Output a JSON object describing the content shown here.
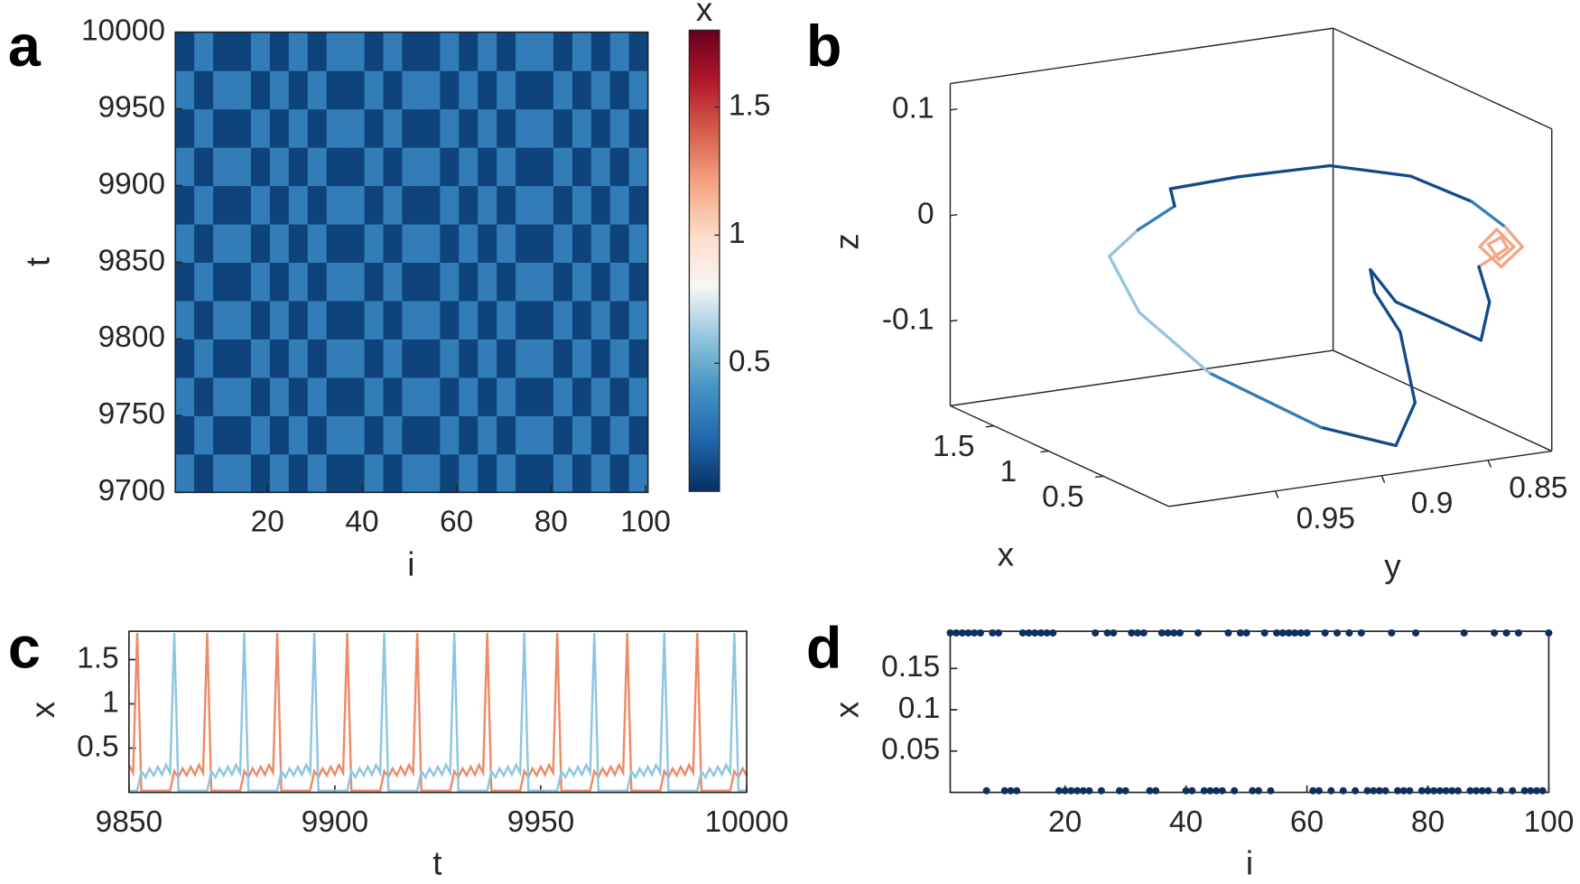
{
  "chart_data": [
    {
      "type": "heatmap",
      "label": "a",
      "xlabel": "i",
      "ylabel": "t",
      "xlim": [
        0.5,
        100.5
      ],
      "ylim": [
        9700,
        10000
      ],
      "xticks": [
        20,
        40,
        60,
        80,
        100
      ],
      "yticks": [
        9700,
        9750,
        9800,
        9850,
        9900,
        9950,
        10000
      ],
      "colorbar_label": "x",
      "clim": [
        0,
        1.8
      ],
      "cticks": [
        0.5,
        1,
        1.5
      ],
      "colormap": [
        "#053061",
        "#2166ac",
        "#4393c3",
        "#92c5de",
        "#f7f7f7",
        "#fddbc7",
        "#f4a582",
        "#d6604d",
        "#b2182b",
        "#67001f"
      ],
      "values": [
        [
          0.3,
          0.07,
          0.3,
          0.3,
          0.07,
          0.3,
          0.07,
          0.3,
          0.07,
          0.07,
          0.3,
          0.07,
          0.3,
          0.3,
          0.07,
          0.3,
          0.07,
          0.3,
          0.07,
          0.07,
          0.3,
          0.07,
          0.3,
          0.07,
          0.3
        ],
        [
          0.07,
          0.3,
          0.07,
          0.07,
          0.3,
          0.07,
          0.3,
          0.07,
          0.3,
          0.3,
          0.07,
          0.3,
          0.07,
          0.07,
          0.3,
          0.07,
          0.3,
          0.07,
          0.3,
          0.3,
          0.07,
          0.3,
          0.07,
          0.3,
          0.07
        ],
        [
          0.3,
          0.07,
          0.3,
          0.3,
          0.07,
          0.3,
          0.07,
          0.3,
          0.07,
          0.07,
          0.3,
          0.07,
          0.3,
          0.3,
          0.07,
          0.3,
          0.07,
          0.3,
          0.07,
          0.07,
          0.3,
          0.07,
          0.3,
          0.07,
          0.3
        ],
        [
          0.07,
          0.3,
          0.07,
          0.07,
          0.3,
          0.07,
          0.3,
          0.07,
          0.3,
          0.3,
          0.07,
          0.3,
          0.07,
          0.07,
          0.3,
          0.07,
          0.3,
          0.07,
          0.3,
          0.3,
          0.07,
          0.3,
          0.07,
          0.3,
          0.07
        ],
        [
          0.3,
          0.07,
          0.3,
          0.3,
          0.07,
          0.3,
          0.07,
          0.3,
          0.07,
          0.07,
          0.3,
          0.07,
          0.3,
          0.3,
          0.07,
          0.3,
          0.07,
          0.3,
          0.07,
          0.07,
          0.3,
          0.07,
          0.3,
          0.07,
          0.3
        ],
        [
          0.07,
          0.3,
          0.07,
          0.07,
          0.3,
          0.07,
          0.3,
          0.07,
          0.3,
          0.3,
          0.07,
          0.3,
          0.07,
          0.07,
          0.3,
          0.07,
          0.3,
          0.07,
          0.3,
          0.3,
          0.07,
          0.3,
          0.07,
          0.3,
          0.07
        ],
        [
          0.3,
          0.07,
          0.3,
          0.3,
          0.07,
          0.3,
          0.07,
          0.3,
          0.07,
          0.07,
          0.3,
          0.07,
          0.3,
          0.3,
          0.07,
          0.3,
          0.07,
          0.3,
          0.07,
          0.07,
          0.3,
          0.07,
          0.3,
          0.07,
          0.3
        ],
        [
          0.07,
          0.3,
          0.07,
          0.07,
          0.3,
          0.07,
          0.3,
          0.07,
          0.3,
          0.3,
          0.07,
          0.3,
          0.07,
          0.07,
          0.3,
          0.07,
          0.3,
          0.07,
          0.3,
          0.3,
          0.07,
          0.3,
          0.07,
          0.3,
          0.07
        ],
        [
          0.3,
          0.07,
          0.3,
          0.3,
          0.07,
          0.3,
          0.07,
          0.3,
          0.07,
          0.07,
          0.3,
          0.07,
          0.3,
          0.3,
          0.07,
          0.3,
          0.07,
          0.3,
          0.07,
          0.07,
          0.3,
          0.07,
          0.3,
          0.07,
          0.3
        ],
        [
          0.07,
          0.3,
          0.07,
          0.07,
          0.3,
          0.07,
          0.3,
          0.07,
          0.3,
          0.3,
          0.07,
          0.3,
          0.07,
          0.07,
          0.3,
          0.07,
          0.3,
          0.07,
          0.3,
          0.3,
          0.07,
          0.3,
          0.07,
          0.3,
          0.07
        ],
        [
          0.3,
          0.07,
          0.3,
          0.3,
          0.07,
          0.3,
          0.07,
          0.3,
          0.07,
          0.07,
          0.3,
          0.07,
          0.3,
          0.3,
          0.07,
          0.3,
          0.07,
          0.3,
          0.07,
          0.07,
          0.3,
          0.07,
          0.3,
          0.07,
          0.3
        ],
        [
          0.07,
          0.3,
          0.07,
          0.07,
          0.3,
          0.07,
          0.3,
          0.07,
          0.3,
          0.3,
          0.07,
          0.3,
          0.07,
          0.07,
          0.3,
          0.07,
          0.3,
          0.07,
          0.3,
          0.3,
          0.07,
          0.3,
          0.07,
          0.3,
          0.07
        ]
      ]
    },
    {
      "type": "line3d",
      "label": "b",
      "xlabel": "x",
      "ylabel": "y",
      "zlabel": "z",
      "xlim": [
        -0.1,
        1.9
      ],
      "ylim": [
        0.82,
        1.0
      ],
      "zlim": [
        -0.18,
        0.125
      ],
      "xticks": [
        0.5,
        1,
        1.5
      ],
      "yticks": [
        0.85,
        0.9,
        0.95
      ],
      "zticks": [
        -0.1,
        0,
        0.1
      ],
      "clim": [
        0,
        1.8
      ],
      "colormap": [
        "#053061",
        "#2166ac",
        "#4393c3",
        "#92c5de",
        "#f7f7f7",
        "#fddbc7",
        "#f4a582",
        "#d6604d",
        "#b2182b",
        "#67001f"
      ],
      "x": [
        0.1,
        0.1,
        0.1,
        0.1,
        0.3,
        1.2,
        1.2,
        1.2,
        1.2,
        1.2,
        1.2,
        1.2,
        1.2,
        1.2,
        1.2,
        0.1,
        0.1,
        0.1,
        0.1,
        0.1,
        0.1,
        0.1,
        0.1,
        0.1,
        0.1,
        0.3,
        0.6,
        0.6,
        0.6,
        0.3,
        0.1
      ],
      "y": [
        0.989,
        0.957,
        0.914,
        0.876,
        0.837,
        0.775,
        0.767,
        0.777,
        0.787,
        0.779,
        0.771,
        0.778,
        0.783,
        0.777,
        0.774,
        0.844,
        0.839,
        0.843,
        0.862,
        0.883,
        0.895,
        0.893,
        0.881,
        0.874,
        0.883,
        0.908,
        0.945,
        0.978,
        0.992,
        0.994,
        0.987
      ],
      "z": [
        0.108,
        0.11,
        0.108,
        0.087,
        0.042,
        -0.043,
        -0.064,
        -0.08,
        -0.058,
        -0.044,
        -0.063,
        -0.073,
        -0.057,
        -0.052,
        -0.063,
        -0.008,
        -0.043,
        -0.078,
        -0.055,
        -0.03,
        0.004,
        -0.018,
        -0.059,
        -0.128,
        -0.166,
        -0.151,
        -0.103,
        -0.036,
        0.021,
        0.061,
        0.091
      ]
    },
    {
      "type": "line",
      "label": "c",
      "xlabel": "t",
      "ylabel": "x",
      "xlim": [
        9850,
        10000
      ],
      "ylim": [
        0,
        1.82
      ],
      "xticks": [
        9850,
        9900,
        9950,
        10000
      ],
      "yticks": [
        0.5,
        1,
        1.5
      ],
      "x": [
        9850,
        9851,
        9852,
        9853,
        9854,
        9855,
        9856,
        9857,
        9858,
        9859,
        9860,
        9861,
        9862,
        9863,
        9864,
        9865,
        9866,
        9867,
        9868,
        9869,
        9870,
        9871,
        9872,
        9873,
        9874,
        9875,
        9876,
        9877,
        9878,
        9879,
        9880,
        9881,
        9882,
        9883,
        9884,
        9885,
        9886,
        9887,
        9888,
        9889,
        9890,
        9891,
        9892,
        9893,
        9894,
        9895,
        9896,
        9897,
        9898,
        9899,
        9900,
        9901,
        9902,
        9903,
        9904,
        9905,
        9906,
        9907,
        9908,
        9909,
        9910,
        9911,
        9912,
        9913,
        9914,
        9915,
        9916,
        9917,
        9918,
        9919,
        9920,
        9921,
        9922,
        9923,
        9924,
        9925,
        9926,
        9927,
        9928,
        9929,
        9930,
        9931,
        9932,
        9933,
        9934,
        9935,
        9936,
        9937,
        9938,
        9939,
        9940,
        9941,
        9942,
        9943,
        9944,
        9945,
        9946,
        9947,
        9948,
        9949,
        9950,
        9951,
        9952,
        9953,
        9954,
        9955,
        9956,
        9957,
        9958,
        9959,
        9960,
        9961,
        9962,
        9963,
        9964,
        9965,
        9966,
        9967,
        9968,
        9969,
        9970,
        9971,
        9972,
        9973,
        9974,
        9975,
        9976,
        9977,
        9978,
        9979,
        9980,
        9981,
        9982,
        9983,
        9984,
        9985,
        9986,
        9987,
        9988,
        9989,
        9990,
        9991,
        9992,
        9993,
        9994,
        9995,
        9996,
        9997,
        9998,
        9999,
        10000
      ],
      "series": [
        {
          "color": "#ee8a68",
          "values": [
            0.31,
            0.22,
            1.8,
            0.02,
            0.02,
            0.02,
            0.02,
            0.02,
            0.02,
            0.02,
            0.02,
            0.24,
            0.17,
            0.27,
            0.19,
            0.29,
            0.2,
            0.31,
            0.22,
            1.8,
            0.02,
            0.02,
            0.02,
            0.02,
            0.02,
            0.02,
            0.02,
            0.02,
            0.24,
            0.17,
            0.27,
            0.19,
            0.29,
            0.2,
            0.31,
            0.22,
            1.8,
            0.02,
            0.02,
            0.02,
            0.02,
            0.02,
            0.02,
            0.02,
            0.02,
            0.24,
            0.17,
            0.27,
            0.19,
            0.29,
            0.2,
            0.31,
            0.22,
            1.8,
            0.02,
            0.02,
            0.02,
            0.02,
            0.02,
            0.02,
            0.02,
            0.02,
            0.24,
            0.17,
            0.27,
            0.19,
            0.29,
            0.2,
            0.31,
            0.22,
            1.8,
            0.02,
            0.02,
            0.02,
            0.02,
            0.02,
            0.02,
            0.02,
            0.02,
            0.24,
            0.17,
            0.27,
            0.19,
            0.29,
            0.2,
            0.31,
            0.22,
            1.8,
            0.02,
            0.02,
            0.02,
            0.02,
            0.02,
            0.02,
            0.02,
            0.02,
            0.24,
            0.17,
            0.27,
            0.19,
            0.29,
            0.2,
            0.31,
            0.22,
            1.8,
            0.02,
            0.02,
            0.02,
            0.02,
            0.02,
            0.02,
            0.02,
            0.02,
            0.24,
            0.17,
            0.27,
            0.19,
            0.29,
            0.2,
            0.31,
            0.22,
            1.8,
            0.02,
            0.02,
            0.02,
            0.02,
            0.02,
            0.02,
            0.02,
            0.02,
            0.24,
            0.17,
            0.27,
            0.19,
            0.29,
            0.2,
            0.31,
            0.22,
            1.8,
            0.02,
            0.02,
            0.02,
            0.02,
            0.02,
            0.02,
            0.02,
            0.02,
            0.24,
            0.17,
            0.27,
            0.19
          ]
        },
        {
          "color": "#8cc6e3",
          "values": [
            0.02,
            0.02,
            0.02,
            0.24,
            0.17,
            0.27,
            0.19,
            0.29,
            0.2,
            0.31,
            0.22,
            1.8,
            0.02,
            0.02,
            0.02,
            0.02,
            0.02,
            0.02,
            0.02,
            0.02,
            0.24,
            0.17,
            0.27,
            0.19,
            0.29,
            0.2,
            0.31,
            0.22,
            1.8,
            0.02,
            0.02,
            0.02,
            0.02,
            0.02,
            0.02,
            0.02,
            0.02,
            0.24,
            0.17,
            0.27,
            0.19,
            0.29,
            0.2,
            0.31,
            0.22,
            1.8,
            0.02,
            0.02,
            0.02,
            0.02,
            0.02,
            0.02,
            0.02,
            0.02,
            0.24,
            0.17,
            0.27,
            0.19,
            0.29,
            0.2,
            0.31,
            0.22,
            1.8,
            0.02,
            0.02,
            0.02,
            0.02,
            0.02,
            0.02,
            0.02,
            0.02,
            0.24,
            0.17,
            0.27,
            0.19,
            0.29,
            0.2,
            0.31,
            0.22,
            1.8,
            0.02,
            0.02,
            0.02,
            0.02,
            0.02,
            0.02,
            0.02,
            0.02,
            0.24,
            0.17,
            0.27,
            0.19,
            0.29,
            0.2,
            0.31,
            0.22,
            1.8,
            0.02,
            0.02,
            0.02,
            0.02,
            0.02,
            0.02,
            0.02,
            0.02,
            0.24,
            0.17,
            0.27,
            0.19,
            0.29,
            0.2,
            0.31,
            0.22,
            1.8,
            0.02,
            0.02,
            0.02,
            0.02,
            0.02,
            0.02,
            0.02,
            0.02,
            0.24,
            0.17,
            0.27,
            0.19,
            0.29,
            0.2,
            0.31,
            0.22,
            1.8,
            0.02,
            0.02,
            0.02,
            0.02,
            0.02,
            0.02,
            0.02,
            0.02,
            0.24,
            0.17,
            0.27,
            0.19,
            0.29,
            0.2,
            0.31,
            0.22,
            1.8,
            0.02,
            0.02,
            0.02
          ]
        }
      ]
    },
    {
      "type": "scatter",
      "label": "d",
      "xlabel": "i",
      "ylabel": "x",
      "xlim": [
        1,
        100
      ],
      "ylim": [
        0,
        0.195
      ],
      "xticks": [
        20,
        40,
        60,
        80,
        100
      ],
      "yticks": [
        0.05,
        0.1,
        0.15
      ],
      "color": "#0d2f5e",
      "x": [
        1,
        2,
        3,
        4,
        5,
        6,
        7,
        8,
        9,
        10,
        11,
        12,
        13,
        14,
        15,
        16,
        17,
        18,
        19,
        20,
        21,
        22,
        23,
        24,
        25,
        26,
        27,
        28,
        29,
        30,
        31,
        32,
        33,
        34,
        35,
        36,
        37,
        38,
        39,
        40,
        41,
        42,
        43,
        44,
        45,
        46,
        47,
        48,
        49,
        50,
        51,
        52,
        53,
        54,
        55,
        56,
        57,
        58,
        59,
        60,
        61,
        62,
        63,
        64,
        65,
        66,
        67,
        68,
        69,
        70,
        71,
        72,
        73,
        74,
        75,
        76,
        77,
        78,
        79,
        80,
        81,
        82,
        83,
        84,
        85,
        86,
        87,
        88,
        89,
        90,
        91,
        92,
        93,
        94,
        95,
        96,
        97,
        98,
        99,
        100
      ],
      "values": [
        0.193,
        0.193,
        0.193,
        0.193,
        0.193,
        0.193,
        0.002,
        0.193,
        0.193,
        0.002,
        0.002,
        0.002,
        0.193,
        0.193,
        0.193,
        0.193,
        0.193,
        0.193,
        0.002,
        0.002,
        0.002,
        0.002,
        0.002,
        0.002,
        0.193,
        0.002,
        0.193,
        0.193,
        0.002,
        0.002,
        0.193,
        0.193,
        0.193,
        0.002,
        0.002,
        0.193,
        0.193,
        0.193,
        0.193,
        0.002,
        0.002,
        0.193,
        0.002,
        0.002,
        0.002,
        0.002,
        0.193,
        0.002,
        0.193,
        0.193,
        0.002,
        0.002,
        0.193,
        0.002,
        0.193,
        0.193,
        0.193,
        0.193,
        0.193,
        0.193,
        0.002,
        0.002,
        0.193,
        0.002,
        0.193,
        0.002,
        0.193,
        0.002,
        0.193,
        0.002,
        0.002,
        0.002,
        0.002,
        0.193,
        0.002,
        0.002,
        0.002,
        0.193,
        0.002,
        0.002,
        0.002,
        0.002,
        0.002,
        0.002,
        0.002,
        0.193,
        0.002,
        0.002,
        0.002,
        0.002,
        0.193,
        0.002,
        0.193,
        0.002,
        0.193,
        0.002,
        0.002,
        0.002,
        0.002,
        0.193
      ]
    }
  ]
}
